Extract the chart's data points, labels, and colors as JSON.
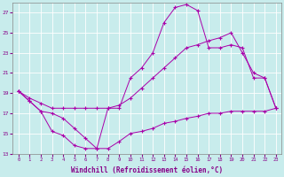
{
  "bg_color": "#c8ecec",
  "line_color": "#aa00aa",
  "xlabel": "Windchill (Refroidissement éolien,°C)",
  "xlim": [
    -0.5,
    23.5
  ],
  "ylim": [
    13,
    28
  ],
  "yticks": [
    13,
    15,
    17,
    19,
    21,
    23,
    25,
    27
  ],
  "xticks": [
    0,
    1,
    2,
    3,
    4,
    5,
    6,
    7,
    8,
    9,
    10,
    11,
    12,
    13,
    14,
    15,
    16,
    17,
    18,
    19,
    20,
    21,
    22,
    23
  ],
  "c1x": [
    0,
    1,
    2,
    3,
    4,
    5,
    6,
    7,
    8,
    9,
    10,
    11,
    12,
    13,
    14,
    15,
    16,
    17,
    18,
    19,
    20,
    21,
    22,
    23
  ],
  "c1y": [
    19.2,
    18.2,
    17.2,
    15.2,
    14.8,
    13.8,
    13.5,
    13.5,
    13.5,
    14.2,
    15.0,
    15.2,
    15.5,
    16.0,
    16.2,
    16.5,
    16.7,
    17.0,
    17.0,
    17.2,
    17.2,
    17.2,
    17.2,
    17.5
  ],
  "c2x": [
    0,
    1,
    2,
    3,
    4,
    5,
    6,
    7,
    8,
    9,
    10,
    11,
    12,
    13,
    14,
    15,
    16,
    17,
    18,
    19,
    20,
    21,
    22,
    23
  ],
  "c2y": [
    19.2,
    18.2,
    17.2,
    17.0,
    16.5,
    15.5,
    14.5,
    13.5,
    17.5,
    17.5,
    20.5,
    21.5,
    23.0,
    26.0,
    27.5,
    27.8,
    27.2,
    23.5,
    23.5,
    23.8,
    23.5,
    20.5,
    20.5,
    17.5
  ],
  "c3x": [
    0,
    1,
    2,
    3,
    4,
    5,
    6,
    7,
    8,
    9,
    10,
    11,
    12,
    13,
    14,
    15,
    16,
    17,
    18,
    19,
    20,
    21,
    22,
    23
  ],
  "c3y": [
    19.2,
    18.5,
    18.0,
    17.5,
    17.5,
    17.5,
    17.5,
    17.5,
    17.5,
    17.8,
    18.5,
    19.5,
    20.5,
    21.5,
    22.5,
    23.5,
    23.8,
    24.2,
    24.5,
    25.0,
    23.0,
    21.0,
    20.5,
    17.5
  ]
}
